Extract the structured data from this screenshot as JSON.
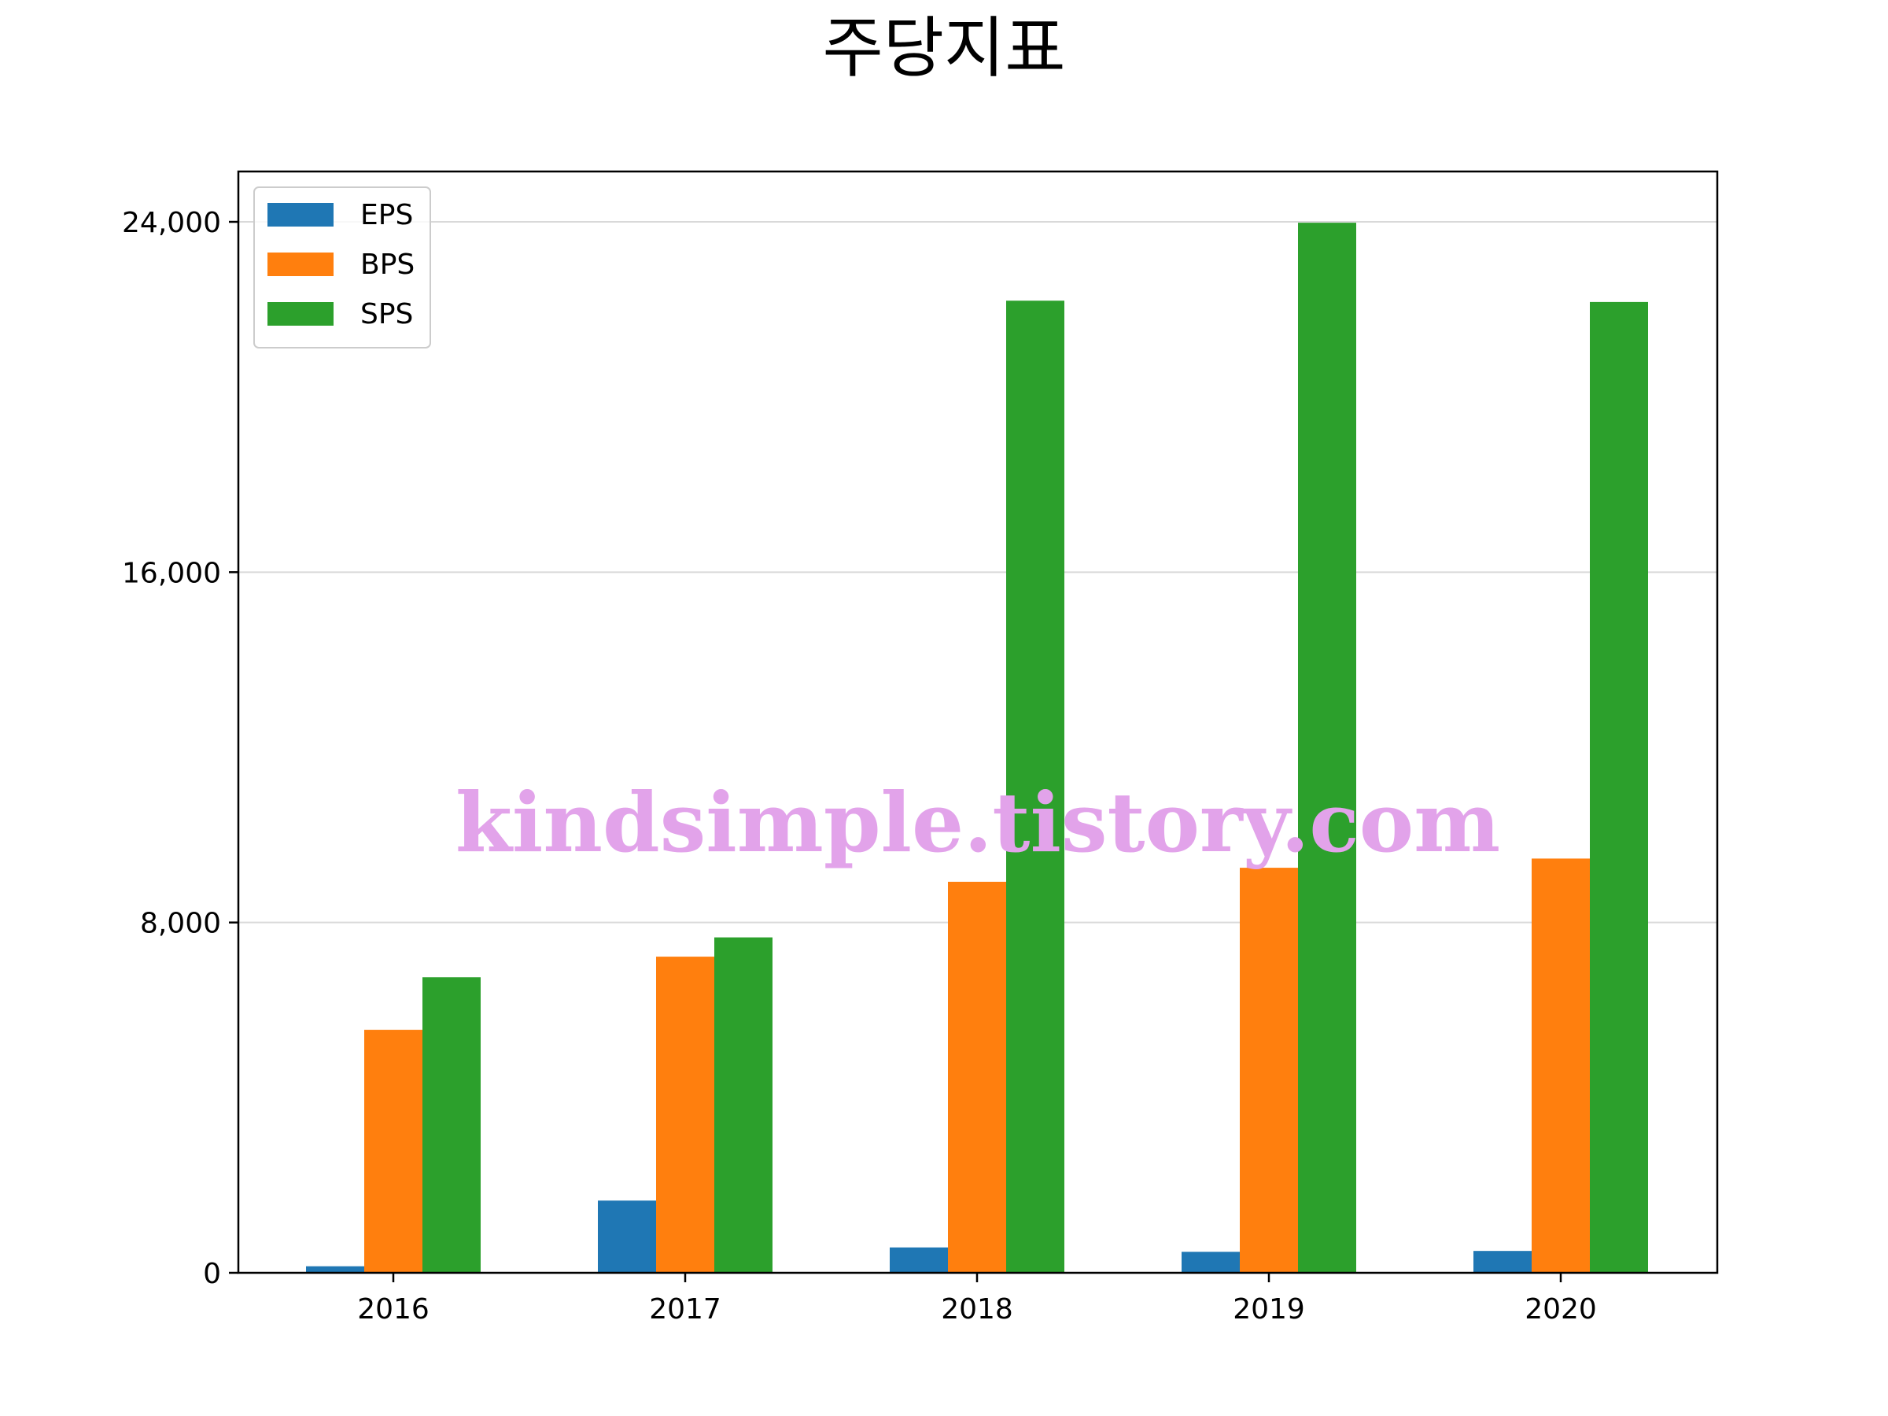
{
  "chart_data": {
    "type": "bar",
    "title": "주당지표",
    "xlabel": "",
    "ylabel": "",
    "categories": [
      "2016",
      "2017",
      "2018",
      "2019",
      "2020"
    ],
    "series": [
      {
        "name": "EPS",
        "color": "#1f77b4",
        "values": [
          150,
          1650,
          580,
          480,
          500
        ]
      },
      {
        "name": "BPS",
        "color": "#ff7f0e",
        "values": [
          5550,
          7220,
          8930,
          9250,
          9460
        ]
      },
      {
        "name": "SPS",
        "color": "#2ca02c",
        "values": [
          6750,
          7660,
          22200,
          23980,
          22170
        ]
      }
    ],
    "yticks": [
      0,
      8000,
      16000,
      24000
    ],
    "ytick_labels": [
      "0",
      "8,000",
      "16,000",
      "24,000"
    ],
    "ylim": [
      0,
      25150
    ],
    "grid": "y",
    "legend_position": "top-left",
    "watermark": "kindsimple.tistory.com"
  }
}
